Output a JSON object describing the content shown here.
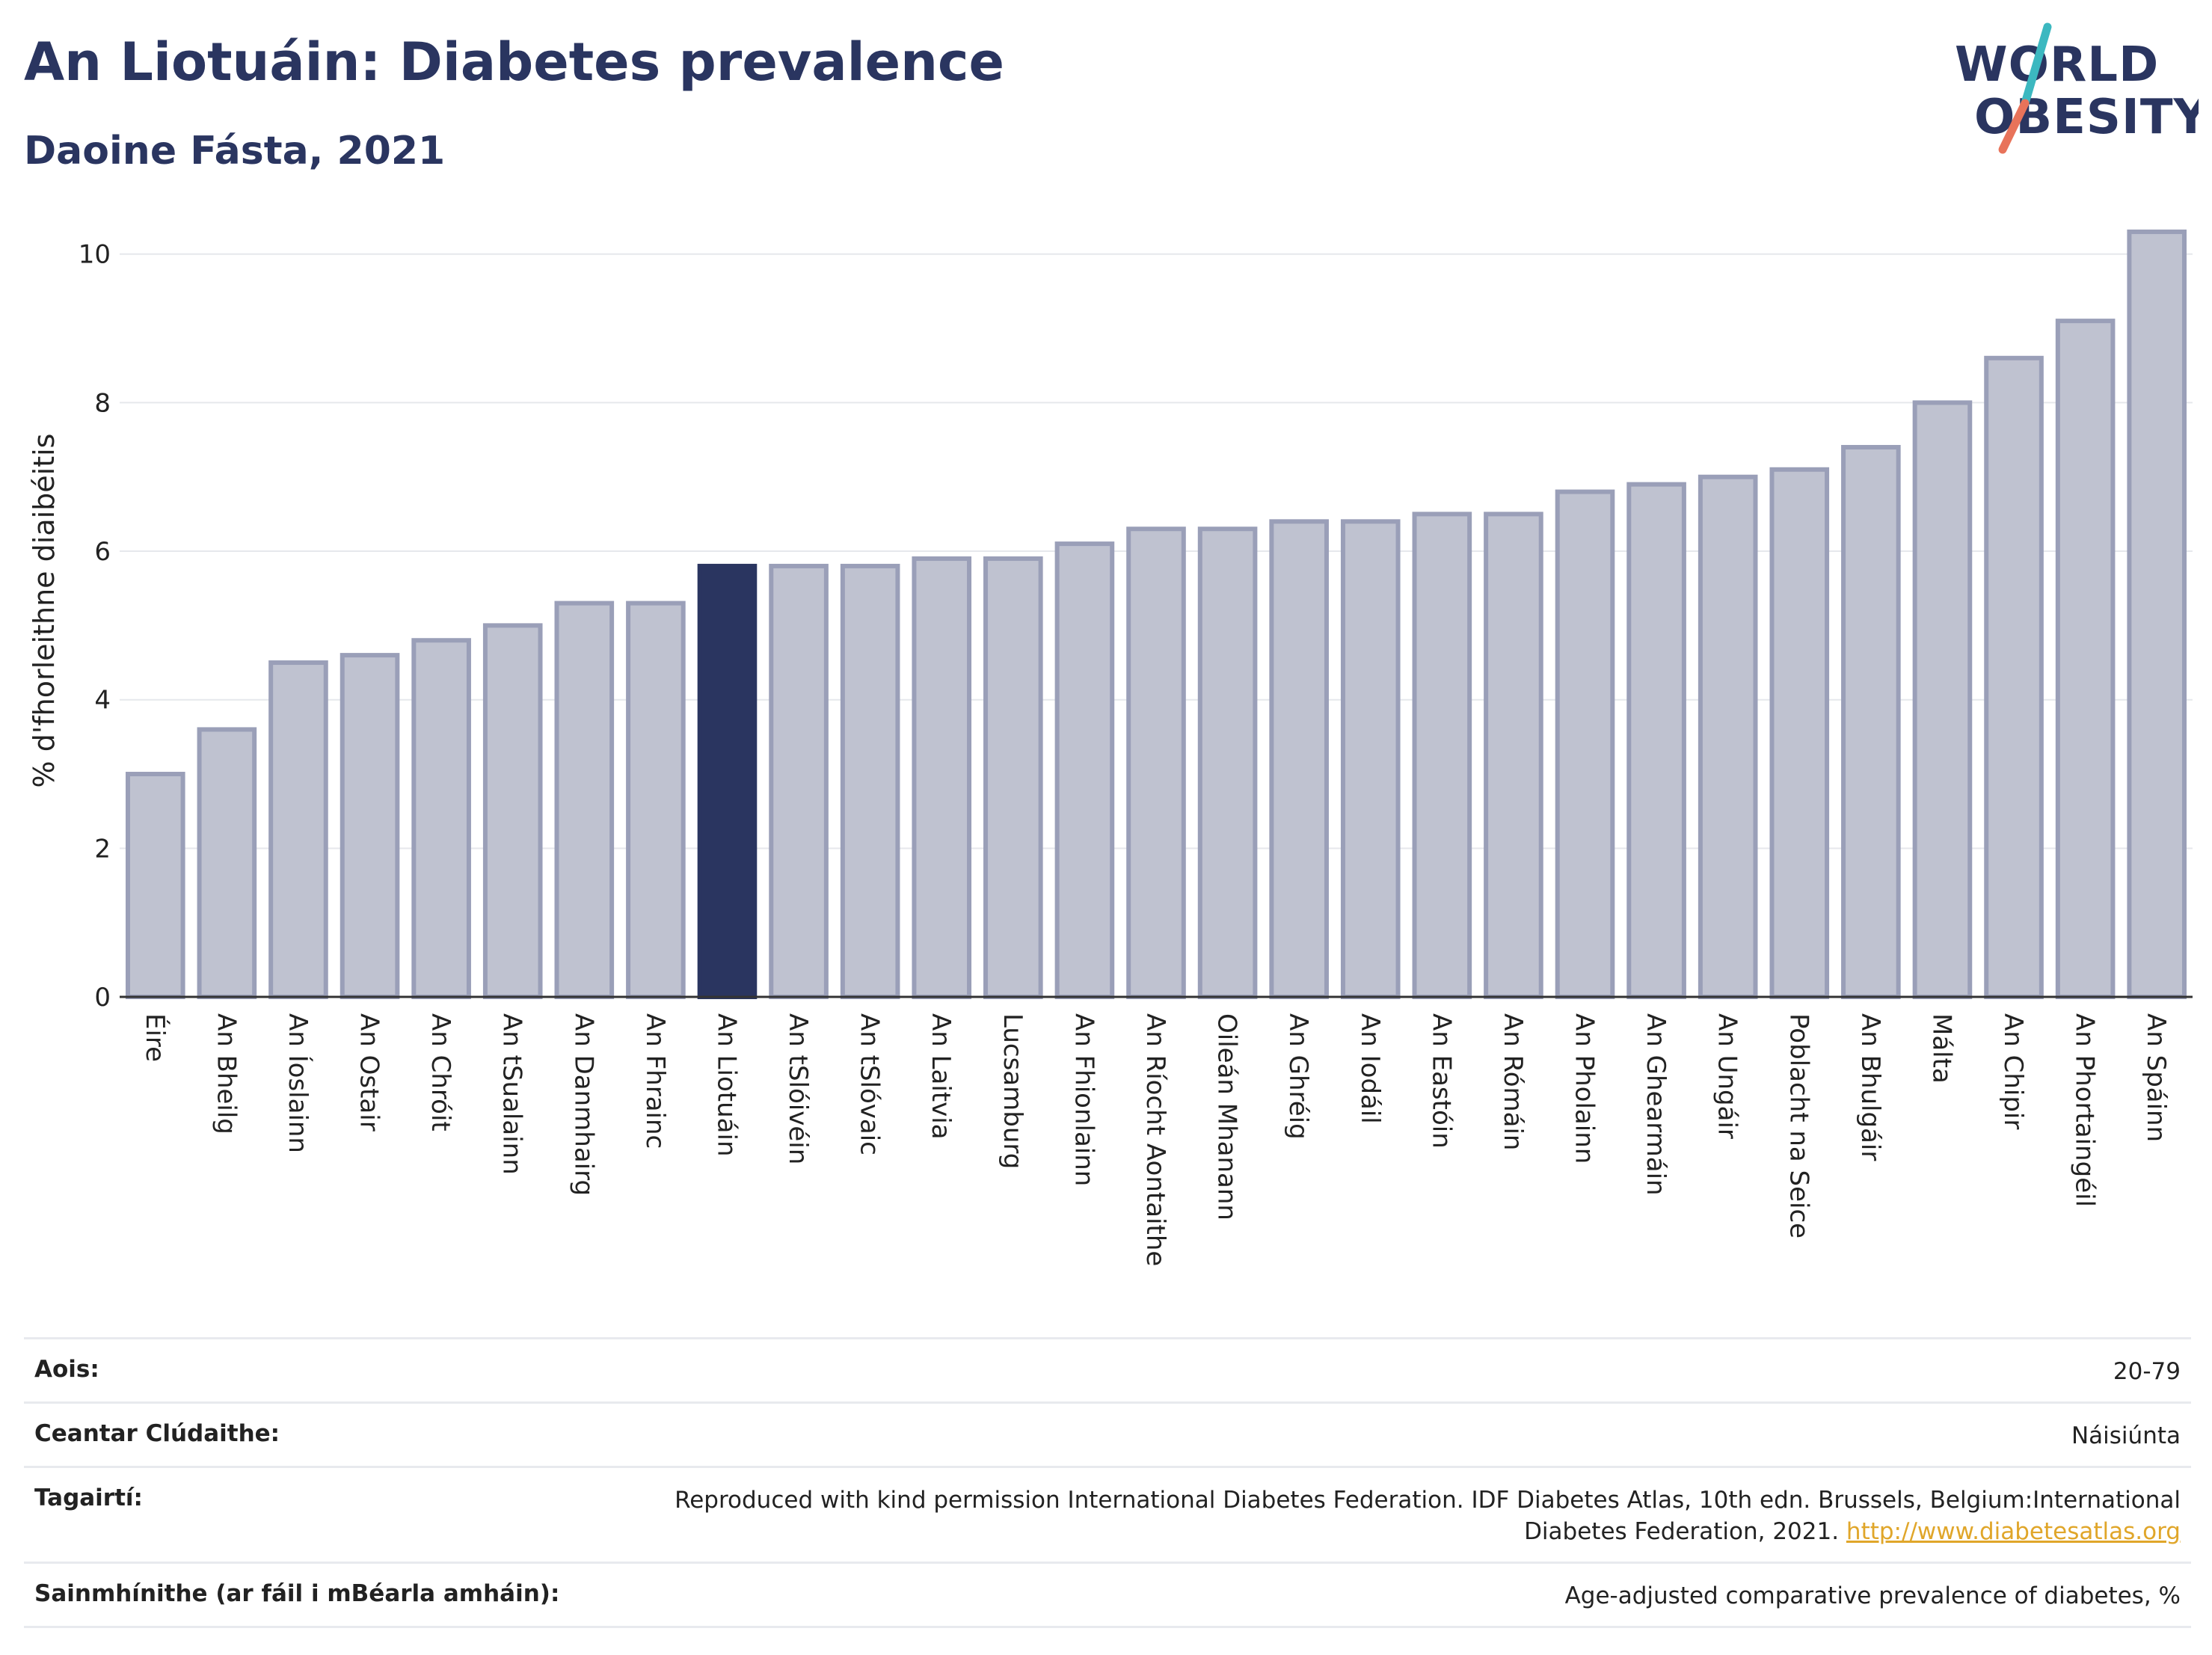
{
  "header": {
    "title": "An Liotuáin: Diabetes prevalence",
    "subtitle": "Daoine Fásta, 2021"
  },
  "logo": {
    "line1": "WORLD",
    "line2": "OBESITY",
    "slash_colors": [
      "#3cb8c0",
      "#e8735a"
    ]
  },
  "colors": {
    "highlight": "#2a3560",
    "bar": "#bfc2d0",
    "bar_border": "#9a9fb8"
  },
  "chart_data": {
    "type": "bar",
    "title": "An Liotuáin: Diabetes prevalence",
    "subtitle": "Daoine Fásta, 2021",
    "ylabel": "% d'fhorleithne diaibéitis",
    "xlabel": "",
    "ylim": [
      0,
      10.4
    ],
    "yticks": [
      0,
      2,
      4,
      6,
      8,
      10
    ],
    "grid": true,
    "highlight": "An Liotuáin",
    "categories": [
      "Éire",
      "An Bheilg",
      "An Íoslainn",
      "An Ostair",
      "An Chróit",
      "An tSualainn",
      "An Danmhairg",
      "An Fhrainc",
      "An Liotuáin",
      "An tSlóivéin",
      "An tSlóvaic",
      "An Laitvia",
      "Lucsamburg",
      "An Fhionlainn",
      "An Ríocht Aontaithe",
      "Oileán Mhanann",
      "An Ghréig",
      "An Iodáil",
      "An Eastóin",
      "An Rómáin",
      "An Pholainn",
      "An Ghearmáin",
      "An Ungáir",
      "Poblacht na Seice",
      "An Bhulgáir",
      "Málta",
      "An Chipir",
      "An Phortaingéil",
      "An Spáinn"
    ],
    "values": [
      3.0,
      3.6,
      4.5,
      4.6,
      4.8,
      5.0,
      5.3,
      5.3,
      5.8,
      5.8,
      5.8,
      5.9,
      5.9,
      6.1,
      6.3,
      6.3,
      6.4,
      6.4,
      6.5,
      6.5,
      6.8,
      6.9,
      7.0,
      7.1,
      7.4,
      8.0,
      8.6,
      9.1,
      10.3
    ]
  },
  "info": [
    {
      "key": "Aois:",
      "value": "20-79"
    },
    {
      "key": "Ceantar Clúdaithe:",
      "value": "Náisiúnta"
    },
    {
      "key": "Tagairtí:",
      "value": "Reproduced with kind permission International Diabetes Federation.  IDF Diabetes Atlas, 10th edn. Brussels, Belgium:International Diabetes Federation, 2021.",
      "link": "http://www.diabetesatlas.org"
    },
    {
      "key": "Sainmhínithe (ar fáil i mBéarla amháin):",
      "value": "Age-adjusted comparative prevalence of diabetes, %"
    }
  ]
}
